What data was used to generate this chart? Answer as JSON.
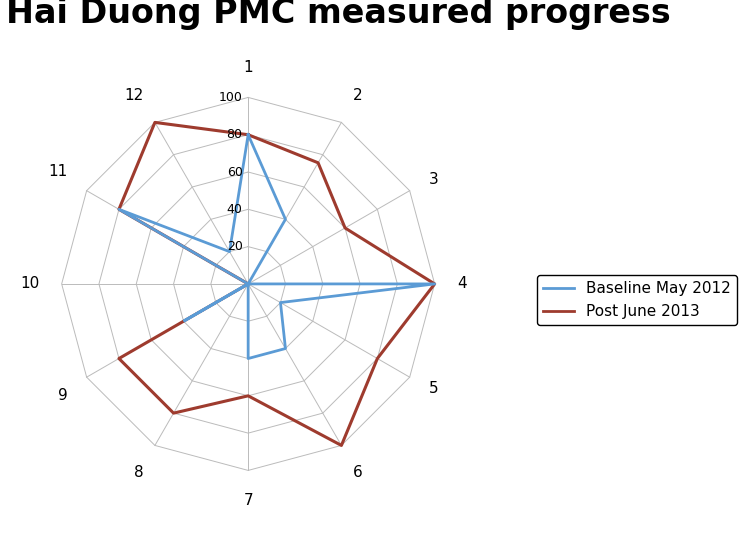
{
  "title": "Hai Duong PMC measured progress",
  "categories": [
    "1",
    "2",
    "3",
    "4",
    "5",
    "6",
    "7",
    "8",
    "9",
    "10",
    "11",
    "12"
  ],
  "baseline": [
    80,
    40,
    0,
    100,
    20,
    40,
    40,
    0,
    40,
    0,
    80,
    20
  ],
  "post": [
    80,
    75,
    60,
    100,
    80,
    100,
    60,
    80,
    80,
    0,
    80,
    100
  ],
  "baseline_color": "#5B9BD5",
  "post_color": "#9E3B2E",
  "baseline_label": "Baseline May 2012",
  "post_label": "Post June 2013",
  "max_val": 100,
  "tick_vals": [
    20,
    40,
    60,
    80,
    100
  ],
  "background_color": "#ffffff",
  "grid_color": "#bbbbbb",
  "title_fontsize": 24,
  "label_fontsize": 11,
  "tick_fontsize": 9
}
